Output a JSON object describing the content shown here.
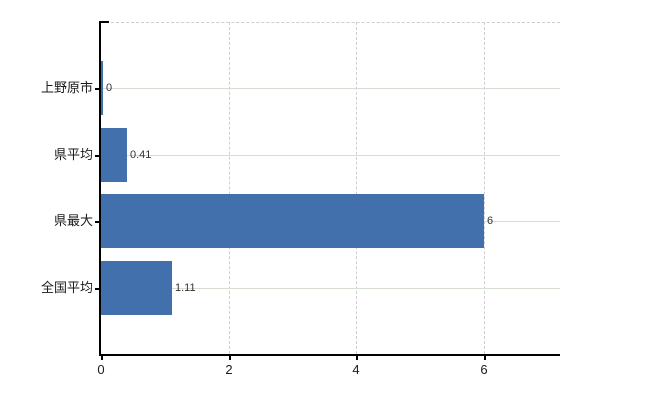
{
  "chart_data": {
    "type": "bar",
    "orientation": "horizontal",
    "categories": [
      "上野原市",
      "県平均",
      "県最大",
      "全国平均"
    ],
    "values": [
      0,
      0.41,
      6,
      1.11
    ],
    "value_labels": [
      "0",
      "0.41",
      "6",
      "1.11"
    ],
    "x_ticks": [
      0,
      2,
      4,
      6
    ],
    "x_tick_labels": [
      "0",
      "2",
      "4",
      "6"
    ],
    "xlim": [
      0,
      7.2
    ],
    "grid": {
      "horizontal": true,
      "vertical": true,
      "top_border": true,
      "vertical_style": "dashed",
      "horizontal_style": "solid"
    },
    "legend": "none",
    "colors": {
      "bar": "#4170ad",
      "h_gridline": "#d6ddd2",
      "v_gridline": "#d3cbd1",
      "axis": "#000000",
      "category_label": "#1a1a1a",
      "tick_label": "#1a1a1a",
      "value_label": "#333333",
      "background": "#ffffff"
    }
  }
}
